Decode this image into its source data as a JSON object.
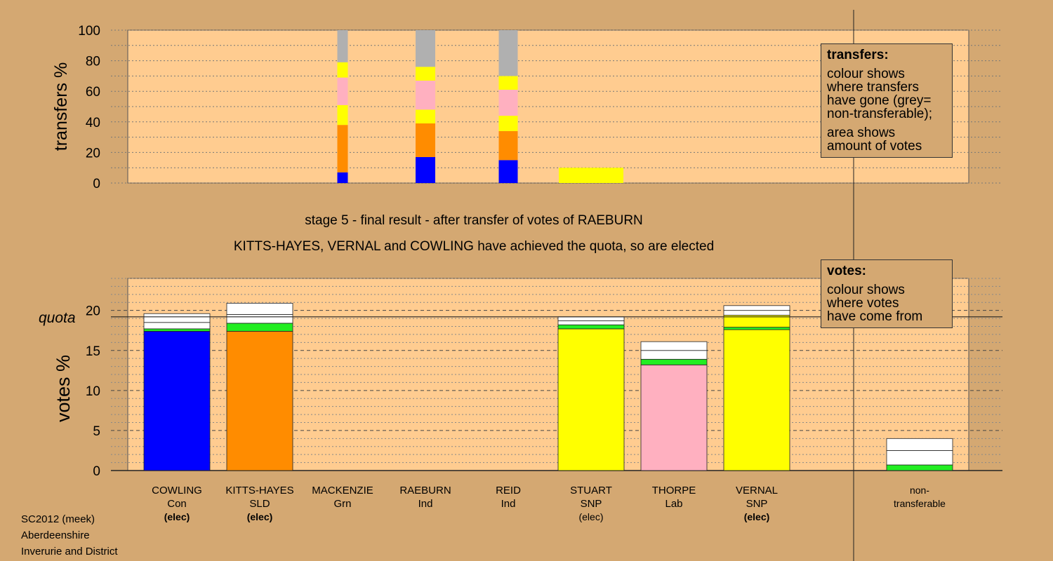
{
  "chart_data": [
    {
      "type": "bar",
      "ylabel": "transfers %",
      "ylim": [
        0,
        100
      ],
      "yticks": [
        0,
        20,
        40,
        60,
        80,
        100
      ],
      "categories": [
        "COWLING",
        "KITTS-HAYES",
        "MACKENZIE",
        "RAEBURN",
        "REID",
        "STUART",
        "THORPE",
        "VERNAL",
        "non-transferable"
      ],
      "stacks": [
        {
          "category": "MACKENZIE",
          "segments": [
            {
              "color": "#0000ff",
              "value": 7
            },
            {
              "color": "#ff8c00",
              "value": 31
            },
            {
              "color": "#ffff00",
              "value": 13
            },
            {
              "color": "#ffb0c0",
              "value": 18
            },
            {
              "color": "#ffff00",
              "value": 10
            },
            {
              "color": "#b0b0b0",
              "value": 21
            }
          ]
        },
        {
          "category": "RAEBURN",
          "segments": [
            {
              "color": "#0000ff",
              "value": 17
            },
            {
              "color": "#ff8c00",
              "value": 22
            },
            {
              "color": "#ffff00",
              "value": 9
            },
            {
              "color": "#ffb0c0",
              "value": 19
            },
            {
              "color": "#ffff00",
              "value": 9
            },
            {
              "color": "#b0b0b0",
              "value": 24
            }
          ]
        },
        {
          "category": "REID",
          "segments": [
            {
              "color": "#0000ff",
              "value": 15
            },
            {
              "color": "#ff8c00",
              "value": 19
            },
            {
              "color": "#ffff00",
              "value": 10
            },
            {
              "color": "#ffb0c0",
              "value": 17
            },
            {
              "color": "#ffff00",
              "value": 9
            },
            {
              "color": "#b0b0b0",
              "value": 30
            }
          ]
        }
      ],
      "pending_transfer": {
        "category": "STUART",
        "color": "#ffff00",
        "value": 10
      }
    },
    {
      "type": "bar",
      "ylabel": "votes %",
      "ylim": [
        0,
        24
      ],
      "yticks": [
        0,
        5,
        10,
        15,
        20
      ],
      "quota_label": "quota",
      "quota": 19.2,
      "categories": [
        "COWLING",
        "KITTS-HAYES",
        "MACKENZIE",
        "RAEBURN",
        "REID",
        "STUART",
        "THORPE",
        "VERNAL",
        "non-transferable"
      ],
      "stacks": [
        {
          "category": "COWLING",
          "segments": [
            {
              "color": "#0000ff",
              "value": 17.4
            },
            {
              "color": "#22ee22",
              "value": 0.3
            },
            {
              "color": "#ffffff",
              "value": 0.8
            },
            {
              "color": "#ffffff",
              "value": 1.1
            }
          ]
        },
        {
          "category": "KITTS-HAYES",
          "segments": [
            {
              "color": "#ff8c00",
              "value": 17.4
            },
            {
              "color": "#22ee22",
              "value": 1.0
            },
            {
              "color": "#ffffff",
              "value": 1.1
            },
            {
              "color": "#ffffff",
              "value": 1.4
            }
          ]
        },
        {
          "category": "STUART",
          "segments": [
            {
              "color": "#ffff00",
              "value": 17.7
            },
            {
              "color": "#22ee22",
              "value": 0.5
            },
            {
              "color": "#ffffff",
              "value": 0.5
            },
            {
              "color": "#ffffff",
              "value": 0.5
            }
          ]
        },
        {
          "category": "THORPE",
          "segments": [
            {
              "color": "#ffb0c0",
              "value": 13.2
            },
            {
              "color": "#22ee22",
              "value": 0.7
            },
            {
              "color": "#ffffff",
              "value": 1.1
            },
            {
              "color": "#ffffff",
              "value": 1.1
            }
          ]
        },
        {
          "category": "VERNAL",
          "segments": [
            {
              "color": "#ffff00",
              "value": 17.6
            },
            {
              "color": "#22ee22",
              "value": 0.3
            },
            {
              "color": "#ffff00",
              "value": 1.5
            },
            {
              "color": "#ffffff",
              "value": 0.6
            },
            {
              "color": "#ffffff",
              "value": 0.6
            }
          ]
        },
        {
          "category": "non-transferable",
          "segments": [
            {
              "color": "#22ee22",
              "value": 0.7
            },
            {
              "color": "#ffffff",
              "value": 1.8
            },
            {
              "color": "#ffffff",
              "value": 1.5
            }
          ]
        }
      ]
    }
  ],
  "colors": {
    "page_background": "#d4a872",
    "plot_background": "#ffcc90"
  },
  "candidates": [
    {
      "name": "COWLING",
      "party": "Con",
      "status": "(elec)",
      "status_bold": true
    },
    {
      "name": "KITTS-HAYES",
      "party": "SLD",
      "status": "(elec)",
      "status_bold": true
    },
    {
      "name": "MACKENZIE",
      "party": "Grn",
      "status": ""
    },
    {
      "name": "RAEBURN",
      "party": "Ind",
      "status": ""
    },
    {
      "name": "REID",
      "party": "Ind",
      "status": ""
    },
    {
      "name": "STUART",
      "party": "SNP",
      "status": "(elec)",
      "status_bold": false
    },
    {
      "name": "THORPE",
      "party": "Lab",
      "status": ""
    },
    {
      "name": "VERNAL",
      "party": "SNP",
      "status": "(elec)",
      "status_bold": true
    }
  ],
  "nontransferable_label": [
    "non-",
    "transferable"
  ],
  "captions": {
    "stage": "stage 5 - final result - after transfer of votes of RAEBURN",
    "result": "KITTS-HAYES, VERNAL and COWLING have achieved the quota, so are elected"
  },
  "transfers_box": {
    "heading": "transfers:",
    "lines1": [
      "colour shows",
      "where transfers",
      "have gone (grey=",
      "non-transferable);"
    ],
    "lines2": [
      "area shows",
      "amount of votes"
    ]
  },
  "votes_box": {
    "heading": "votes:",
    "lines1": [
      "colour shows",
      "where votes",
      "have come from"
    ]
  },
  "footer": [
    "SC2012 (meek)",
    "Aberdeenshire",
    "Inverurie and District"
  ]
}
